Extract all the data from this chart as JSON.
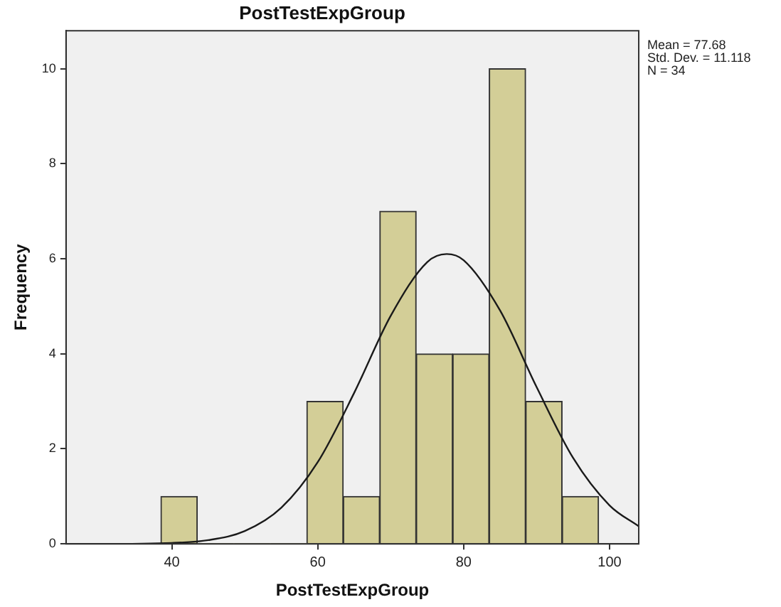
{
  "chart_data": {
    "type": "histogram",
    "title": "PostTestExpGroup",
    "xlabel": "PostTestExpGroup",
    "ylabel": "Frequency",
    "series": [
      {
        "color": "#d3ce97",
        "bins": [
          38.5,
          43.5,
          48.5,
          53.5,
          58.5,
          63.5,
          68.5,
          73.5,
          78.5,
          83.5,
          88.5,
          93.5,
          98.5
        ],
        "values": [
          1,
          0,
          0,
          0,
          3,
          1,
          7,
          4,
          4,
          10,
          3,
          1
        ]
      },
      {
        "type": "line",
        "color": "#1a1a1a",
        "marker": "none",
        "x": [
          26,
          30,
          40,
          45,
          50,
          55,
          60,
          65,
          70,
          75,
          77.68,
          80,
          85,
          90,
          95,
          100,
          104
        ],
        "values": [
          0,
          0,
          0.02,
          0.08,
          0.27,
          0.76,
          1.72,
          3.18,
          4.8,
          5.93,
          6.1,
          5.97,
          4.91,
          3.3,
          1.81,
          0.81,
          0.37
        ]
      }
    ],
    "xlim": [
      25.5,
      104
    ],
    "xticks": [
      40,
      60,
      80,
      100
    ],
    "ylim": [
      0,
      10.8
    ],
    "yticks": [
      0,
      2,
      4,
      6,
      8,
      10
    ],
    "grid": false,
    "legend": false,
    "annotations": [
      "Mean = 77.68",
      "Std. Dev. = 11.118",
      "N = 34"
    ]
  }
}
